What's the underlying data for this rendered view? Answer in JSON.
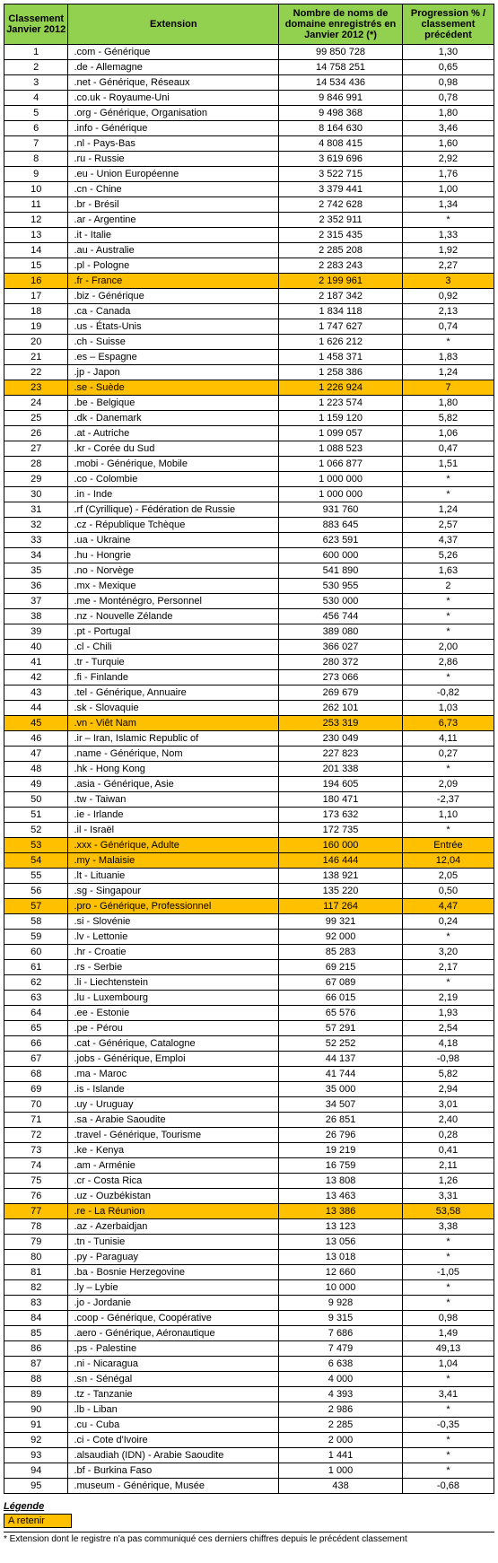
{
  "headers": {
    "rank": "Classement Janvier 2012",
    "extension": "Extension",
    "count": "Nombre de noms de domaine enregistrés en Janvier 2012 (*)",
    "progress": "Progression % / classement précédent"
  },
  "legend": {
    "title": "Légende",
    "swatch_label": "A retenir",
    "swatch_color": "#ffc000"
  },
  "footnote": "* Extension dont le registre n'a pas communiqué ces derniers chiffres depuis le précédent classement",
  "colors": {
    "header_bg": "#92d050",
    "highlight_bg": "#ffc000",
    "border": "#000000",
    "text": "#000000"
  },
  "rows": [
    {
      "rank": "1",
      "ext": ".com - Générique",
      "num": "99 850 728",
      "prog": "1,30",
      "hl": false
    },
    {
      "rank": "2",
      "ext": ".de - Allemagne",
      "num": "14 758 251",
      "prog": "0,65",
      "hl": false
    },
    {
      "rank": "3",
      "ext": ".net - Générique, Réseaux",
      "num": "14 534 436",
      "prog": "0,98",
      "hl": false
    },
    {
      "rank": "4",
      "ext": ".co.uk  - Royaume-Uni",
      "num": "9 846 991",
      "prog": "0,78",
      "hl": false
    },
    {
      "rank": "5",
      "ext": ".org - Générique, Organisation",
      "num": "9 498 368",
      "prog": "1,80",
      "hl": false
    },
    {
      "rank": "6",
      "ext": ".info - Générique",
      "num": "8 164 630",
      "prog": "3,46",
      "hl": false
    },
    {
      "rank": "7",
      "ext": ".nl  -  Pays-Bas",
      "num": "4 808 415",
      "prog": "1,60",
      "hl": false
    },
    {
      "rank": "8",
      "ext": ".ru - Russie",
      "num": "3 619 696",
      "prog": "2,92",
      "hl": false
    },
    {
      "rank": "9",
      "ext": ".eu - Union Européenne",
      "num": "3 522 715",
      "prog": "1,76",
      "hl": false
    },
    {
      "rank": "10",
      "ext": ".cn - Chine",
      "num": "3 379 441",
      "prog": "1,00",
      "hl": false
    },
    {
      "rank": "11",
      "ext": ".br - Brésil",
      "num": "2 742 628",
      "prog": "1,34",
      "hl": false
    },
    {
      "rank": "12",
      "ext": ".ar - Argentine",
      "num": "2 352 911",
      "prog": "*",
      "hl": false
    },
    {
      "rank": "13",
      "ext": ".it - Italie",
      "num": "2 315 435",
      "prog": "1,33",
      "hl": false
    },
    {
      "rank": "14",
      "ext": ".au - Australie",
      "num": "2 285 208",
      "prog": "1,92",
      "hl": false
    },
    {
      "rank": "15",
      "ext": ".pl - Pologne",
      "num": "2 283 243",
      "prog": "2,27",
      "hl": false
    },
    {
      "rank": "16",
      "ext": ".fr - France",
      "num": "2 199 961",
      "prog": "3",
      "hl": true
    },
    {
      "rank": "17",
      "ext": ".biz - Générique",
      "num": "2 187 342",
      "prog": "0,92",
      "hl": false
    },
    {
      "rank": "18",
      "ext": ".ca - Canada",
      "num": "1 834 118",
      "prog": "2,13",
      "hl": false
    },
    {
      "rank": "19",
      "ext": ".us - États-Unis",
      "num": "1 747 627",
      "prog": "0,74",
      "hl": false
    },
    {
      "rank": "20",
      "ext": ".ch - Suisse",
      "num": "1 626 212",
      "prog": "*",
      "hl": false
    },
    {
      "rank": "21",
      "ext": ".es  – Espagne",
      "num": "1 458 371",
      "prog": "1,83",
      "hl": false
    },
    {
      "rank": "22",
      "ext": ".jp - Japon",
      "num": "1 258 386",
      "prog": "1,24",
      "hl": false
    },
    {
      "rank": "23",
      "ext": ".se - Suède",
      "num": "1 226 924",
      "prog": "7",
      "hl": true
    },
    {
      "rank": "24",
      "ext": ".be - Belgique",
      "num": "1 223 574",
      "prog": "1,80",
      "hl": false
    },
    {
      "rank": "25",
      "ext": ".dk - Danemark",
      "num": "1 159 120",
      "prog": "5,82",
      "hl": false
    },
    {
      "rank": "26",
      "ext": ".at - Autriche",
      "num": "1 099 057",
      "prog": "1,06",
      "hl": false
    },
    {
      "rank": "27",
      "ext": ".kr  - Corée du Sud",
      "num": "1 088 523",
      "prog": "0,47",
      "hl": false
    },
    {
      "rank": "28",
      "ext": ".mobi - Générique, Mobile",
      "num": "1 066 877",
      "prog": "1,51",
      "hl": false
    },
    {
      "rank": "29",
      "ext": ".co - Colombie",
      "num": "1 000 000",
      "prog": "*",
      "hl": false
    },
    {
      "rank": "30",
      "ext": ".in - Inde",
      "num": "1 000 000",
      "prog": "*",
      "hl": false
    },
    {
      "rank": "31",
      "ext": ".rf (Cyrillique) - Fédération de Russie",
      "num": "931 760",
      "prog": "1,24",
      "hl": false
    },
    {
      "rank": "32",
      "ext": ".cz - République Tchèque",
      "num": "883 645",
      "prog": "2,57",
      "hl": false
    },
    {
      "rank": "33",
      "ext": ".ua - Ukraine",
      "num": "623 591",
      "prog": "4,37",
      "hl": false
    },
    {
      "rank": "34",
      "ext": ".hu - Hongrie",
      "num": "600 000",
      "prog": "5,26",
      "hl": false
    },
    {
      "rank": "35",
      "ext": ".no - Norvège",
      "num": "541 890",
      "prog": "1,63",
      "hl": false
    },
    {
      "rank": "36",
      "ext": ".mx - Mexique",
      "num": "530 955",
      "prog": "2",
      "hl": false
    },
    {
      "rank": "37",
      "ext": ".me - Monténégro, Personnel",
      "num": "530 000",
      "prog": "*",
      "hl": false
    },
    {
      "rank": "38",
      "ext": ".nz - Nouvelle Zélande",
      "num": "456 744",
      "prog": "*",
      "hl": false
    },
    {
      "rank": "39",
      "ext": ".pt - Portugal",
      "num": "389 080",
      "prog": "*",
      "hl": false
    },
    {
      "rank": "40",
      "ext": ".cl - Chili",
      "num": "366 027",
      "prog": "2,00",
      "hl": false
    },
    {
      "rank": "41",
      "ext": ".tr - Turquie",
      "num": "280 372",
      "prog": "2,86",
      "hl": false
    },
    {
      "rank": "42",
      "ext": ".fi - Finlande",
      "num": "273 066",
      "prog": "*",
      "hl": false
    },
    {
      "rank": "43",
      "ext": ".tel - Générique, Annuaire",
      "num": "269 679",
      "prog": "-0,82",
      "hl": false
    },
    {
      "rank": "44",
      "ext": ".sk - Slovaquie",
      "num": "262 101",
      "prog": "1,03",
      "hl": false
    },
    {
      "rank": "45",
      "ext": ".vn - Viêt Nam",
      "num": "253 319",
      "prog": "6,73",
      "hl": true
    },
    {
      "rank": "46",
      "ext": ".ir  –  Iran, Islamic Republic of",
      "num": "230 049",
      "prog": "4,11",
      "hl": false
    },
    {
      "rank": "47",
      "ext": ".name - Générique, Nom",
      "num": "227 823",
      "prog": "0,27",
      "hl": false
    },
    {
      "rank": "48",
      "ext": ".hk - Hong Kong",
      "num": "201 338",
      "prog": "*",
      "hl": false
    },
    {
      "rank": "49",
      "ext": ".asia - Générique, Asie",
      "num": "194 605",
      "prog": "2,09",
      "hl": false
    },
    {
      "rank": "50",
      "ext": ".tw - Taiwan",
      "num": "180 471",
      "prog": "-2,37",
      "hl": false
    },
    {
      "rank": "51",
      "ext": ".ie - Irlande",
      "num": "173 632",
      "prog": "1,10",
      "hl": false
    },
    {
      "rank": "52",
      "ext": ".il - Israël",
      "num": "172 735",
      "prog": "*",
      "hl": false
    },
    {
      "rank": "53",
      "ext": ".xxx - Générique, Adulte",
      "num": "160 000",
      "prog": "Entrée",
      "hl": true
    },
    {
      "rank": "54",
      "ext": ".my - Malaisie",
      "num": "146 444",
      "prog": "12,04",
      "hl": true
    },
    {
      "rank": "55",
      "ext": ".lt - Lituanie",
      "num": "138 921",
      "prog": "2,05",
      "hl": false
    },
    {
      "rank": "56",
      "ext": ".sg - Singapour",
      "num": "135 220",
      "prog": "0,50",
      "hl": false
    },
    {
      "rank": "57",
      "ext": ".pro - Générique, Professionnel",
      "num": "117 264",
      "prog": "4,47",
      "hl": true
    },
    {
      "rank": "58",
      "ext": ".si - Slovénie",
      "num": "99 321",
      "prog": "0,24",
      "hl": false
    },
    {
      "rank": "59",
      "ext": ".lv - Lettonie",
      "num": "92 000",
      "prog": "*",
      "hl": false
    },
    {
      "rank": "60",
      "ext": ".hr - Croatie",
      "num": "85 283",
      "prog": "3,20",
      "hl": false
    },
    {
      "rank": "61",
      "ext": ".rs - Serbie",
      "num": "69 215",
      "prog": "2,17",
      "hl": false
    },
    {
      "rank": "62",
      "ext": ".li - Liechtenstein",
      "num": "67 089",
      "prog": "*",
      "hl": false
    },
    {
      "rank": "63",
      "ext": ".lu - Luxembourg",
      "num": "66 015",
      "prog": "2,19",
      "hl": false
    },
    {
      "rank": "64",
      "ext": ".ee - Estonie",
      "num": "65 576",
      "prog": "1,93",
      "hl": false
    },
    {
      "rank": "65",
      "ext": ".pe - Pérou",
      "num": "57 291",
      "prog": "2,54",
      "hl": false
    },
    {
      "rank": "66",
      "ext": ".cat - Générique, Catalogne",
      "num": "52 252",
      "prog": "4,18",
      "hl": false
    },
    {
      "rank": "67",
      "ext": ".jobs - Générique, Emploi",
      "num": "44 137",
      "prog": "-0,98",
      "hl": false
    },
    {
      "rank": "68",
      "ext": ".ma - Maroc",
      "num": "41 744",
      "prog": "5,82",
      "hl": false
    },
    {
      "rank": "69",
      "ext": ".is - Islande",
      "num": "35 000",
      "prog": "2,94",
      "hl": false
    },
    {
      "rank": "70",
      "ext": ".uy - Uruguay",
      "num": "34 507",
      "prog": "3,01",
      "hl": false
    },
    {
      "rank": "71",
      "ext": ".sa - Arabie Saoudite",
      "num": "26 851",
      "prog": "2,40",
      "hl": false
    },
    {
      "rank": "72",
      "ext": ".travel - Générique, Tourisme",
      "num": "26 796",
      "prog": "0,28",
      "hl": false
    },
    {
      "rank": "73",
      "ext": ".ke - Kenya",
      "num": "19 219",
      "prog": "0,41",
      "hl": false
    },
    {
      "rank": "74",
      "ext": ".am - Arménie",
      "num": "16 759",
      "prog": "2,11",
      "hl": false
    },
    {
      "rank": "75",
      "ext": ".cr - Costa Rica",
      "num": "13 808",
      "prog": "1,26",
      "hl": false
    },
    {
      "rank": "76",
      "ext": ".uz - Ouzbékistan",
      "num": "13 463",
      "prog": "3,31",
      "hl": false
    },
    {
      "rank": "77",
      "ext": ".re - La Réunion",
      "num": "13 386",
      "prog": "53,58",
      "hl": true
    },
    {
      "rank": "78",
      "ext": ".az - Azerbaidjan",
      "num": "13 123",
      "prog": "3,38",
      "hl": false
    },
    {
      "rank": "79",
      "ext": ".tn - Tunisie",
      "num": "13 056",
      "prog": "*",
      "hl": false
    },
    {
      "rank": "80",
      "ext": ".py - Paraguay",
      "num": "13 018",
      "prog": "*",
      "hl": false
    },
    {
      "rank": "81",
      "ext": ".ba - Bosnie Herzegovine",
      "num": "12 660",
      "prog": "-1,05",
      "hl": false
    },
    {
      "rank": "82",
      "ext": ".ly  –  Lybie",
      "num": "10 000",
      "prog": "*",
      "hl": false
    },
    {
      "rank": "83",
      "ext": ".jo - Jordanie",
      "num": "9 928",
      "prog": "*",
      "hl": false
    },
    {
      "rank": "84",
      "ext": ".coop - Générique, Coopérative",
      "num": "9 315",
      "prog": "0,98",
      "hl": false
    },
    {
      "rank": "85",
      "ext": ".aero - Générique, Aéronautique",
      "num": "7 686",
      "prog": "1,49",
      "hl": false
    },
    {
      "rank": "86",
      "ext": ".ps - Palestine",
      "num": "7 479",
      "prog": "49,13",
      "hl": false
    },
    {
      "rank": "87",
      "ext": ".ni - Nicaragua",
      "num": "6 638",
      "prog": "1,04",
      "hl": false
    },
    {
      "rank": "88",
      "ext": ".sn - Sénégal",
      "num": "4 000",
      "prog": "*",
      "hl": false
    },
    {
      "rank": "89",
      "ext": ".tz - Tanzanie",
      "num": "4 393",
      "prog": "3,41",
      "hl": false
    },
    {
      "rank": "90",
      "ext": ".lb - Liban",
      "num": "2 986",
      "prog": "*",
      "hl": false
    },
    {
      "rank": "91",
      "ext": ".cu - Cuba",
      "num": "2 285",
      "prog": "-0,35",
      "hl": false
    },
    {
      "rank": "92",
      "ext": ".ci - Cote d'Ivoire",
      "num": "2 000",
      "prog": "*",
      "hl": false
    },
    {
      "rank": "93",
      "ext": ".alsaudiah (IDN) - Arabie Saoudite",
      "num": "1 441",
      "prog": "*",
      "hl": false
    },
    {
      "rank": "94",
      "ext": ".bf - Burkina Faso",
      "num": "1 000",
      "prog": "*",
      "hl": false
    },
    {
      "rank": "95",
      "ext": ".museum - Générique, Musée",
      "num": "438",
      "prog": "-0,68",
      "hl": false
    }
  ]
}
